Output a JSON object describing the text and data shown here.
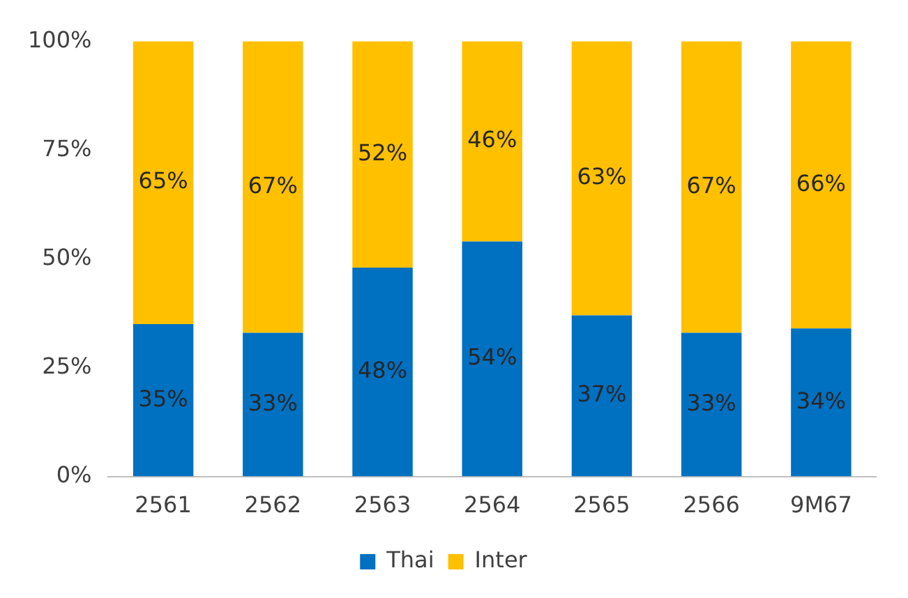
{
  "chart_data": {
    "type": "bar",
    "stacked": true,
    "categories": [
      "2561",
      "2562",
      "2563",
      "2564",
      "2565",
      "2566",
      "9M67"
    ],
    "series": [
      {
        "name": "Thai",
        "color": "#0070c0",
        "values": [
          35,
          33,
          48,
          54,
          37,
          33,
          34
        ],
        "value_labels": [
          "35%",
          "33%",
          "48%",
          "54%",
          "37%",
          "33%",
          "34%"
        ]
      },
      {
        "name": "Inter",
        "color": "#ffc000",
        "values": [
          65,
          67,
          52,
          46,
          63,
          67,
          66
        ],
        "value_labels": [
          "65%",
          "67%",
          "52%",
          "46%",
          "63%",
          "67%",
          "66%"
        ]
      }
    ],
    "ylim": [
      0,
      100
    ],
    "yticks": [
      {
        "value": 0,
        "label": "0%"
      },
      {
        "value": 25,
        "label": "25%"
      },
      {
        "value": 50,
        "label": "50%"
      },
      {
        "value": 75,
        "label": "75%"
      },
      {
        "value": 100,
        "label": "100%"
      }
    ],
    "grid": false,
    "legend": "bottom"
  }
}
